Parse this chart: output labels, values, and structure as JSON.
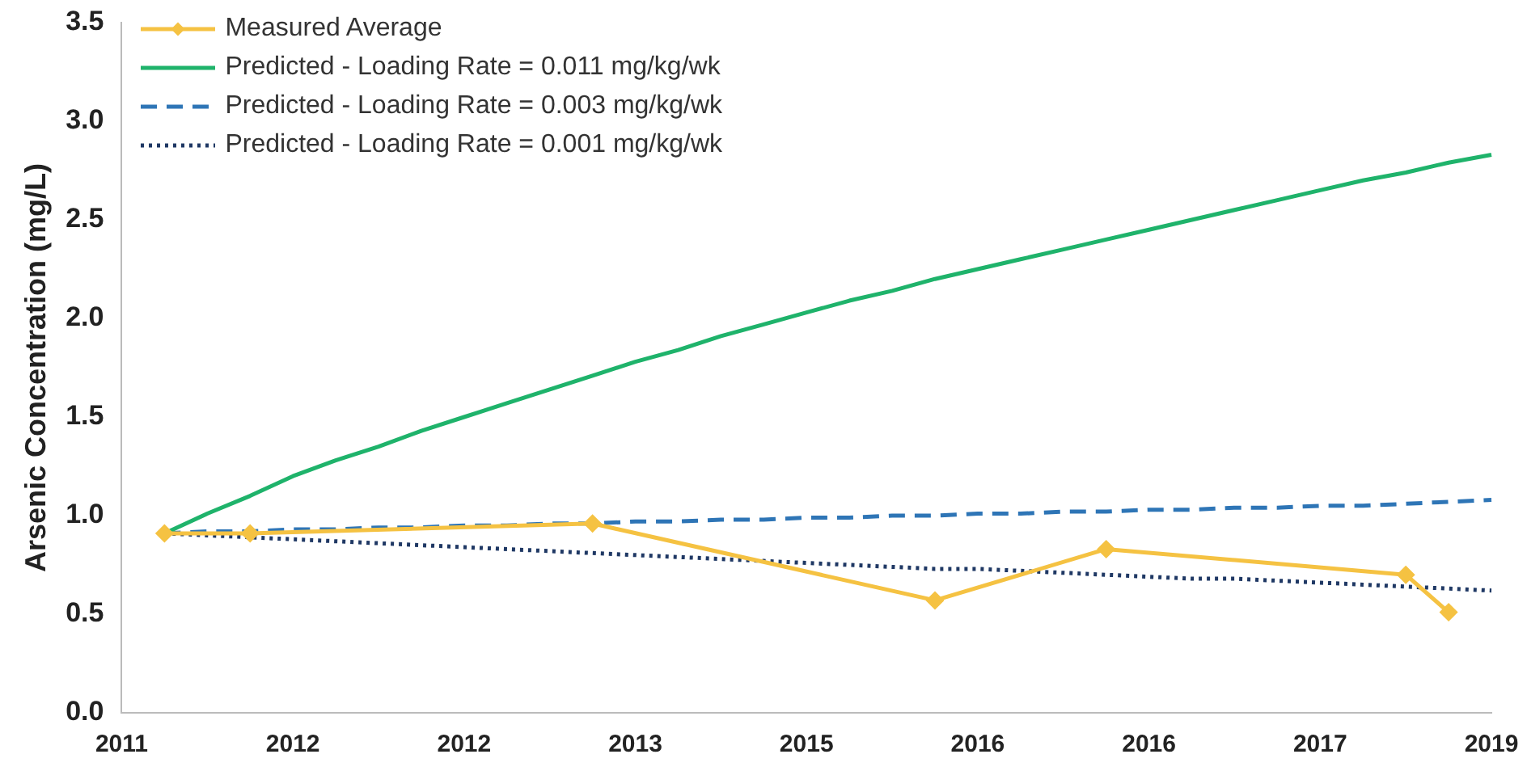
{
  "chart_data": {
    "type": "line",
    "ylabel": "Arsenic Concentration (mg/L)",
    "categories": [
      "2011",
      null,
      null,
      null,
      "2012",
      null,
      null,
      null,
      "2012",
      null,
      null,
      null,
      "2013",
      null,
      null,
      null,
      "2015",
      null,
      null,
      null,
      "2016",
      null,
      null,
      null,
      "2016",
      null,
      null,
      null,
      "2017",
      null,
      null,
      null,
      "2019"
    ],
    "ylim": [
      0,
      3.5
    ],
    "yticks": [
      {
        "value": 0,
        "label": "0.0"
      },
      0.5,
      {
        "value": 1,
        "label": "1.0"
      },
      1.5,
      {
        "value": 2,
        "label": "2.0"
      },
      2.5,
      {
        "value": 3,
        "label": "3.0"
      },
      3.5
    ],
    "grid": false,
    "legend": "top left",
    "series": [
      {
        "name": "Measured Average",
        "color": "#f5c242",
        "marker": "diamond",
        "line_style": "solid",
        "values": [
          null,
          0.91,
          null,
          0.91,
          null,
          null,
          null,
          null,
          null,
          null,
          null,
          0.96,
          null,
          null,
          null,
          null,
          null,
          null,
          null,
          0.57,
          null,
          null,
          null,
          0.83,
          null,
          null,
          null,
          null,
          null,
          null,
          0.7,
          0.51,
          null
        ]
      },
      {
        "name": "Predicted - Loading Rate = 0.011 mg/kg/wk",
        "color": "#1fb36b",
        "marker": "none",
        "line_style": "solid",
        "values": [
          null,
          0.91,
          1.01,
          1.1,
          1.2,
          1.28,
          1.35,
          1.43,
          1.5,
          1.57,
          1.64,
          1.71,
          1.78,
          1.84,
          1.91,
          1.97,
          2.03,
          2.09,
          2.14,
          2.2,
          2.25,
          2.3,
          2.35,
          2.4,
          2.45,
          2.5,
          2.55,
          2.6,
          2.65,
          2.7,
          2.74,
          2.79,
          2.83
        ]
      },
      {
        "name": "Predicted - Loading Rate = 0.003 mg/kg/wk",
        "color": "#2e75b6",
        "marker": "none",
        "line_style": "dashed",
        "values": [
          null,
          0.91,
          0.92,
          0.92,
          0.93,
          0.93,
          0.94,
          0.94,
          0.95,
          0.95,
          0.96,
          0.96,
          0.97,
          0.97,
          0.98,
          0.98,
          0.99,
          0.99,
          1.0,
          1.0,
          1.01,
          1.01,
          1.02,
          1.02,
          1.03,
          1.03,
          1.04,
          1.04,
          1.05,
          1.05,
          1.06,
          1.07,
          1.08
        ]
      },
      {
        "name": "Predicted - Loading Rate = 0.001 mg/kg/wk",
        "color": "#1f3864",
        "marker": "none",
        "line_style": "dotted",
        "values": [
          null,
          0.91,
          0.9,
          0.89,
          0.88,
          0.87,
          0.86,
          0.85,
          0.84,
          0.83,
          0.82,
          0.81,
          0.8,
          0.79,
          0.78,
          0.77,
          0.76,
          0.75,
          0.74,
          0.73,
          0.73,
          0.72,
          0.71,
          0.7,
          0.69,
          0.68,
          0.68,
          0.67,
          0.66,
          0.65,
          0.64,
          0.63,
          0.62
        ]
      }
    ]
  }
}
